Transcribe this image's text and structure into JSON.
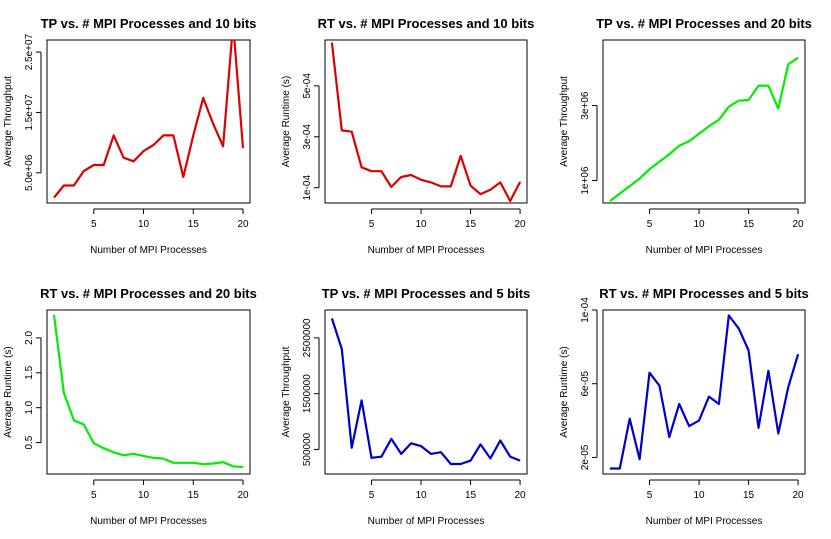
{
  "charts": [
    {
      "title": "TP vs. # MPI Processes and 10 bits",
      "xlabel": "Number of MPI Processes",
      "ylabel": "Average Throughput",
      "color": "#dd0000",
      "type": "line",
      "xlim": [
        0.3,
        20.7
      ],
      "ylim": [
        0,
        27000000
      ],
      "xticks": [
        {
          "v": 5,
          "label": "5"
        },
        {
          "v": 10,
          "label": "10"
        },
        {
          "v": 15,
          "label": "15"
        },
        {
          "v": 20,
          "label": "20"
        }
      ],
      "yticks": [
        {
          "v": 5000000,
          "label": "5.0e+06"
        },
        {
          "v": 15000000,
          "label": "1.5e+07"
        },
        {
          "v": 25000000,
          "label": "2.5e+07"
        }
      ],
      "x": [
        1,
        2,
        3,
        4,
        5,
        6,
        7,
        8,
        9,
        10,
        11,
        12,
        13,
        14,
        15,
        16,
        17,
        18,
        19,
        20
      ],
      "y": [
        900000,
        2900000,
        2900000,
        5300000,
        6300000,
        6300000,
        11200000,
        7500000,
        6900000,
        8600000,
        9600000,
        11200000,
        11200000,
        4300000,
        11200000,
        17400000,
        13100000,
        9400000,
        29700000,
        9100000
      ]
    },
    {
      "title": "RT vs. # MPI Processes and 10 bits",
      "xlabel": "Number of MPI Processes",
      "ylabel": "Average Runtime (s)",
      "color": "#dd0000",
      "type": "line",
      "xlim": [
        0.3,
        20.7
      ],
      "ylim": [
        4e-05,
        0.00068
      ],
      "xticks": [
        {
          "v": 5,
          "label": "5"
        },
        {
          "v": 10,
          "label": "10"
        },
        {
          "v": 15,
          "label": "15"
        },
        {
          "v": 20,
          "label": "20"
        }
      ],
      "yticks": [
        {
          "v": 0.0001,
          "label": "1e-04"
        },
        {
          "v": 0.0003,
          "label": "3e-04"
        },
        {
          "v": 0.0005,
          "label": "5e-04"
        }
      ],
      "x": [
        1,
        2,
        3,
        4,
        5,
        6,
        7,
        8,
        9,
        10,
        11,
        12,
        13,
        14,
        15,
        16,
        17,
        18,
        19,
        20
      ],
      "y": [
        0.00067,
        0.000325,
        0.00032,
        0.00018,
        0.000165,
        0.000165,
        0.000103,
        0.000142,
        0.00015,
        0.000131,
        0.000121,
        0.000105,
        0.000105,
        0.000225,
        0.000108,
        7.5e-05,
        9.2e-05,
        0.000121,
        4.8e-05,
        0.000123
      ]
    },
    {
      "title": "TP vs. # MPI Processes and 20 bits",
      "xlabel": "Number of MPI Processes",
      "ylabel": "Average Throughput",
      "color": "#00ee00",
      "type": "line",
      "xlim": [
        0.3,
        20.7
      ],
      "ylim": [
        400000,
        4750000
      ],
      "xticks": [
        {
          "v": 5,
          "label": "5"
        },
        {
          "v": 10,
          "label": "10"
        },
        {
          "v": 15,
          "label": "15"
        },
        {
          "v": 20,
          "label": "20"
        }
      ],
      "yticks": [
        {
          "v": 1000000,
          "label": "1e+06"
        },
        {
          "v": 3000000,
          "label": "3e+06"
        }
      ],
      "x": [
        1,
        2,
        3,
        4,
        5,
        6,
        7,
        8,
        9,
        10,
        11,
        12,
        13,
        14,
        15,
        16,
        17,
        18,
        19,
        20
      ],
      "y": [
        450000,
        650000,
        850000,
        1050000,
        1300000,
        1500000,
        1700000,
        1930000,
        2050000,
        2250000,
        2450000,
        2620000,
        2970000,
        3130000,
        3150000,
        3530000,
        3530000,
        2920000,
        4100000,
        4280000
      ]
    },
    {
      "title": "RT vs. # MPI Processes and 20 bits",
      "xlabel": "Number of MPI Processes",
      "ylabel": "Average Runtime (s)",
      "color": "#00ee00",
      "type": "line",
      "xlim": [
        0.3,
        20.7
      ],
      "ylim": [
        0.05,
        2.4
      ],
      "xticks": [
        {
          "v": 5,
          "label": "5"
        },
        {
          "v": 10,
          "label": "10"
        },
        {
          "v": 15,
          "label": "15"
        },
        {
          "v": 20,
          "label": "20"
        }
      ],
      "yticks": [
        {
          "v": 0.5,
          "label": "0.5"
        },
        {
          "v": 1.0,
          "label": "1.0"
        },
        {
          "v": 1.5,
          "label": "1.5"
        },
        {
          "v": 2.0,
          "label": "2.0"
        }
      ],
      "x": [
        1,
        2,
        3,
        4,
        5,
        6,
        7,
        8,
        9,
        10,
        11,
        12,
        13,
        14,
        15,
        16,
        17,
        18,
        19,
        20
      ],
      "y": [
        2.33,
        1.21,
        0.82,
        0.76,
        0.49,
        0.42,
        0.36,
        0.32,
        0.34,
        0.31,
        0.28,
        0.27,
        0.21,
        0.21,
        0.21,
        0.19,
        0.2,
        0.22,
        0.16,
        0.15
      ]
    },
    {
      "title": "TP vs. # MPI Processes and 5 bits",
      "xlabel": "Number of MPI Processes",
      "ylabel": "Average Throughput",
      "color": "#0000cc",
      "type": "line",
      "xlim": [
        0.3,
        20.7
      ],
      "ylim": [
        60000,
        3000000
      ],
      "xticks": [
        {
          "v": 5,
          "label": "5"
        },
        {
          "v": 10,
          "label": "10"
        },
        {
          "v": 15,
          "label": "15"
        },
        {
          "v": 20,
          "label": "20"
        }
      ],
      "yticks": [
        {
          "v": 500000,
          "label": "500000"
        },
        {
          "v": 1500000,
          "label": "1500000"
        },
        {
          "v": 2500000,
          "label": "2500000"
        }
      ],
      "x": [
        1,
        2,
        3,
        4,
        5,
        6,
        7,
        8,
        9,
        10,
        11,
        12,
        13,
        14,
        15,
        16,
        17,
        18,
        19,
        20
      ],
      "y": [
        2850000,
        2300000,
        530000,
        1380000,
        350000,
        370000,
        690000,
        420000,
        610000,
        560000,
        420000,
        450000,
        240000,
        240000,
        300000,
        590000,
        340000,
        660000,
        370000,
        300000
      ]
    },
    {
      "title": "RT vs. # MPI Processes and 5 bits",
      "xlabel": "Number of MPI Processes",
      "ylabel": "Average Runtime (s)",
      "color": "#0000cc",
      "type": "line",
      "xlim": [
        0.3,
        20.7
      ],
      "ylim": [
        1.1e-05,
        0.0001
      ],
      "xticks": [
        {
          "v": 5,
          "label": "5"
        },
        {
          "v": 10,
          "label": "10"
        },
        {
          "v": 15,
          "label": "15"
        },
        {
          "v": 20,
          "label": "20"
        }
      ],
      "yticks": [
        {
          "v": 2e-05,
          "label": "2e-05"
        },
        {
          "v": 6e-05,
          "label": "6e-05"
        },
        {
          "v": 0.0001,
          "label": "1e-04"
        }
      ],
      "x": [
        1,
        2,
        3,
        4,
        5,
        6,
        7,
        8,
        9,
        10,
        11,
        12,
        13,
        14,
        15,
        16,
        17,
        18,
        19,
        20
      ],
      "y": [
        1.4e-05,
        1.4e-05,
        4.1e-05,
        1.9e-05,
        6.6e-05,
        5.9e-05,
        3.1e-05,
        4.9e-05,
        3.7e-05,
        4e-05,
        5.3e-05,
        4.9e-05,
        9.7e-05,
        9e-05,
        7.8e-05,
        3.6e-05,
        6.7e-05,
        3.3e-05,
        5.8e-05,
        7.6e-05
      ]
    }
  ],
  "chart_data": [
    {
      "type": "line",
      "title": "TP vs. # MPI Processes and 10 bits",
      "xlabel": "Number of MPI Processes",
      "ylabel": "Average Throughput",
      "x": [
        1,
        2,
        3,
        4,
        5,
        6,
        7,
        8,
        9,
        10,
        11,
        12,
        13,
        14,
        15,
        16,
        17,
        18,
        19,
        20
      ],
      "y": [
        900000,
        2900000,
        2900000,
        5300000,
        6300000,
        6300000,
        11200000,
        7500000,
        6900000,
        8600000,
        9600000,
        11200000,
        11200000,
        4300000,
        11200000,
        17400000,
        13100000,
        9400000,
        29700000,
        9100000
      ]
    },
    {
      "type": "line",
      "title": "RT vs. # MPI Processes and 10 bits",
      "xlabel": "Number of MPI Processes",
      "ylabel": "Average Runtime (s)",
      "x": [
        1,
        2,
        3,
        4,
        5,
        6,
        7,
        8,
        9,
        10,
        11,
        12,
        13,
        14,
        15,
        16,
        17,
        18,
        19,
        20
      ],
      "y": [
        0.00067,
        0.000325,
        0.00032,
        0.00018,
        0.000165,
        0.000165,
        0.000103,
        0.000142,
        0.00015,
        0.000131,
        0.000121,
        0.000105,
        0.000105,
        0.000225,
        0.000108,
        7.5e-05,
        9.2e-05,
        0.000121,
        4.8e-05,
        0.000123
      ]
    },
    {
      "type": "line",
      "title": "TP vs. # MPI Processes and 20 bits",
      "xlabel": "Number of MPI Processes",
      "ylabel": "Average Throughput",
      "x": [
        1,
        2,
        3,
        4,
        5,
        6,
        7,
        8,
        9,
        10,
        11,
        12,
        13,
        14,
        15,
        16,
        17,
        18,
        19,
        20
      ],
      "y": [
        450000,
        650000,
        850000,
        1050000,
        1300000,
        1500000,
        1700000,
        1930000,
        2050000,
        2250000,
        2450000,
        2620000,
        2970000,
        3130000,
        3150000,
        3530000,
        3530000,
        2920000,
        4100000,
        4280000
      ]
    },
    {
      "type": "line",
      "title": "RT vs. # MPI Processes and 20 bits",
      "xlabel": "Number of MPI Processes",
      "ylabel": "Average Runtime (s)",
      "x": [
        1,
        2,
        3,
        4,
        5,
        6,
        7,
        8,
        9,
        10,
        11,
        12,
        13,
        14,
        15,
        16,
        17,
        18,
        19,
        20
      ],
      "y": [
        2.33,
        1.21,
        0.82,
        0.76,
        0.49,
        0.42,
        0.36,
        0.32,
        0.34,
        0.31,
        0.28,
        0.27,
        0.21,
        0.21,
        0.21,
        0.19,
        0.2,
        0.22,
        0.16,
        0.15
      ]
    },
    {
      "type": "line",
      "title": "TP vs. # MPI Processes and 5 bits",
      "xlabel": "Number of MPI Processes",
      "ylabel": "Average Throughput",
      "x": [
        1,
        2,
        3,
        4,
        5,
        6,
        7,
        8,
        9,
        10,
        11,
        12,
        13,
        14,
        15,
        16,
        17,
        18,
        19,
        20
      ],
      "y": [
        2850000,
        2300000,
        530000,
        1380000,
        350000,
        370000,
        690000,
        420000,
        610000,
        560000,
        420000,
        450000,
        240000,
        240000,
        300000,
        590000,
        340000,
        660000,
        370000,
        300000
      ]
    },
    {
      "type": "line",
      "title": "RT vs. # MPI Processes and 5 bits",
      "xlabel": "Number of MPI Processes",
      "ylabel": "Average Runtime (s)",
      "x": [
        1,
        2,
        3,
        4,
        5,
        6,
        7,
        8,
        9,
        10,
        11,
        12,
        13,
        14,
        15,
        16,
        17,
        18,
        19,
        20
      ],
      "y": [
        1.4e-05,
        1.4e-05,
        4.1e-05,
        1.9e-05,
        6.6e-05,
        5.9e-05,
        3.1e-05,
        4.9e-05,
        3.7e-05,
        4e-05,
        5.3e-05,
        4.9e-05,
        9.7e-05,
        9e-05,
        7.8e-05,
        3.6e-05,
        6.7e-05,
        3.3e-05,
        5.8e-05,
        7.6e-05
      ]
    }
  ]
}
